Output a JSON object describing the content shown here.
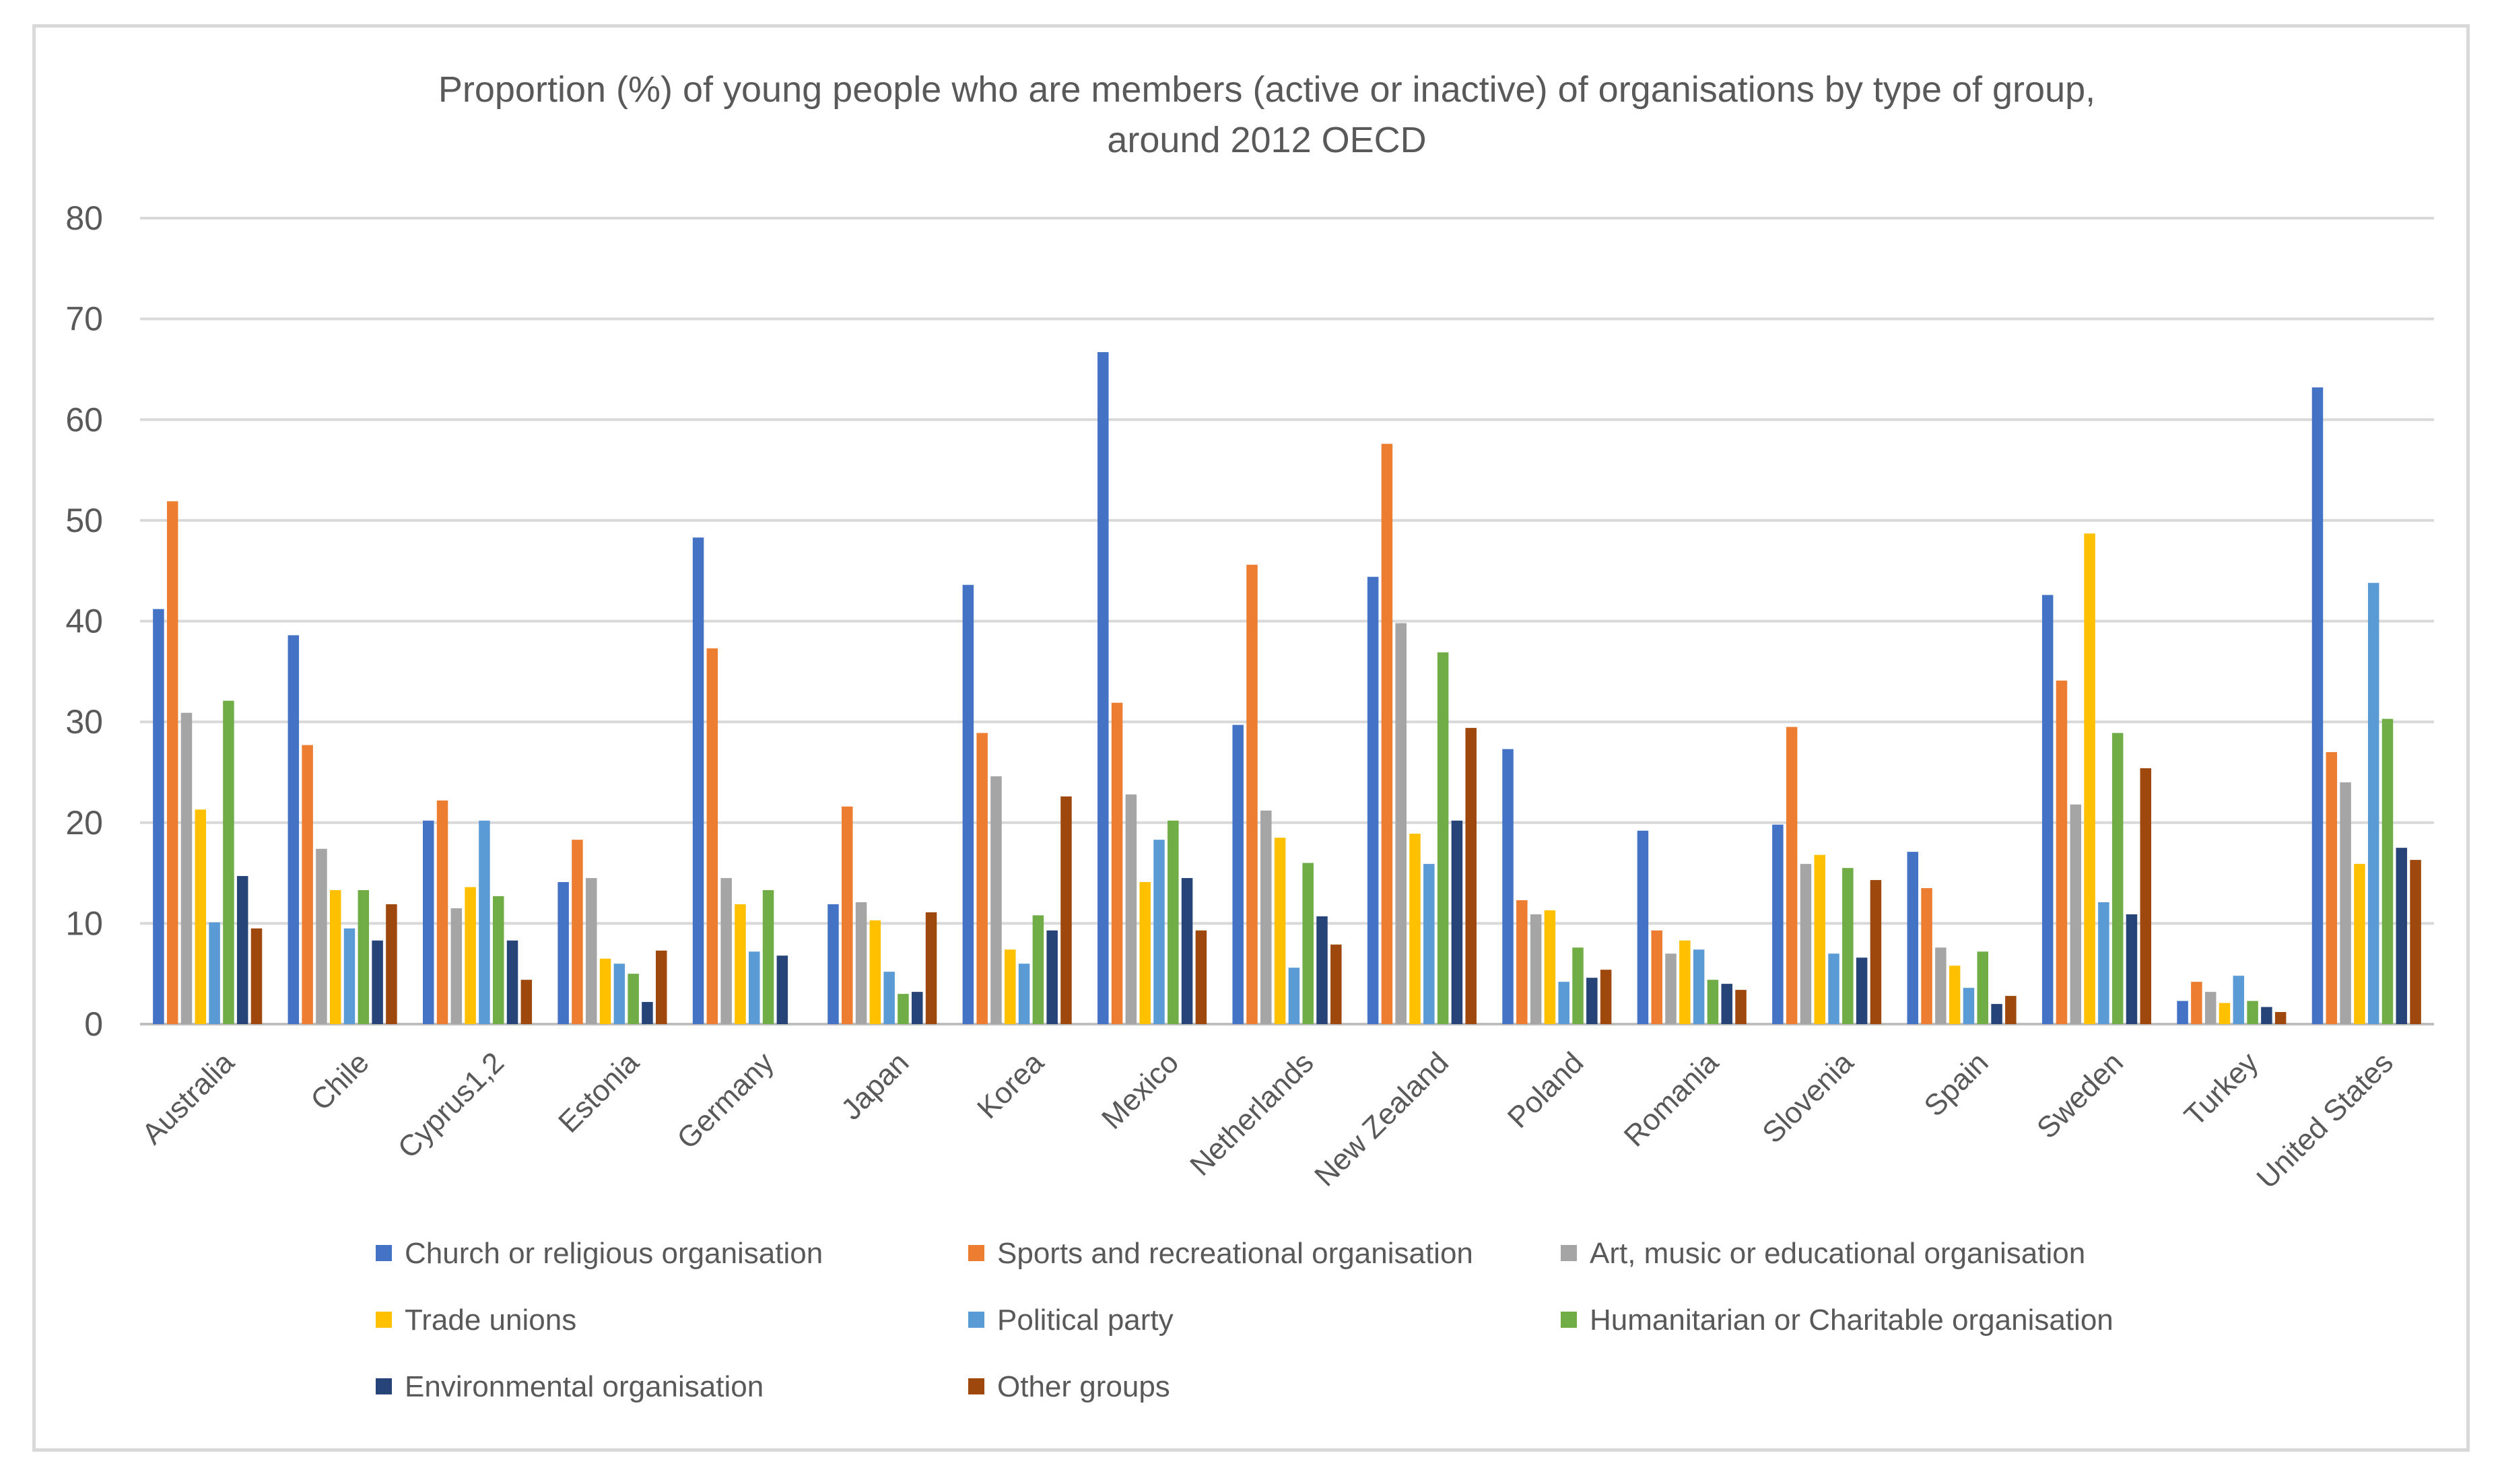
{
  "chart_data": {
    "type": "bar",
    "title_lines": [
      "Proportion (%) of young people who are members (active or inactive) of organisations by type of group,",
      "around 2012 OECD"
    ],
    "xlabel": "",
    "ylabel": "",
    "ylim": [
      0,
      80
    ],
    "yticks": [
      0,
      10,
      20,
      30,
      40,
      50,
      60,
      70,
      80
    ],
    "grid": true,
    "legend_position": "bottom",
    "categories": [
      "Australia",
      "Chile",
      "Cyprus1,2",
      "Estonia",
      "Germany",
      "Japan",
      "Korea",
      "Mexico",
      "Netherlands",
      "New Zealand",
      "Poland",
      "Romania",
      "Slovenia",
      "Spain",
      "Sweden",
      "Turkey",
      "United States"
    ],
    "series": [
      {
        "name": "Church or religious organisation",
        "color": "#4472C4",
        "values": [
          41.2,
          38.6,
          20.2,
          14.1,
          48.3,
          11.9,
          43.6,
          66.7,
          29.7,
          44.4,
          27.3,
          19.2,
          19.8,
          17.1,
          42.6,
          2.3,
          63.2
        ]
      },
      {
        "name": "Sports and recreational organisation",
        "color": "#ED7D31",
        "values": [
          51.9,
          27.7,
          22.2,
          18.3,
          37.3,
          21.6,
          28.9,
          31.9,
          45.6,
          57.6,
          12.3,
          9.3,
          29.5,
          13.5,
          34.1,
          4.2,
          27.0
        ]
      },
      {
        "name": "Art, music or educational organisation",
        "color": "#A5A5A5",
        "values": [
          30.9,
          17.4,
          11.5,
          14.5,
          14.5,
          12.1,
          24.6,
          22.8,
          21.2,
          39.8,
          10.9,
          7.0,
          15.9,
          7.6,
          21.8,
          3.2,
          24.0
        ]
      },
      {
        "name": "Trade unions",
        "color": "#FFC000",
        "values": [
          21.3,
          13.3,
          13.6,
          6.5,
          11.9,
          10.3,
          7.4,
          14.1,
          18.5,
          18.9,
          11.3,
          8.3,
          16.8,
          5.8,
          48.7,
          2.1,
          15.9
        ]
      },
      {
        "name": "Political party",
        "color": "#5B9BD5",
        "values": [
          10.1,
          9.5,
          20.2,
          6.0,
          7.2,
          5.2,
          6.0,
          18.3,
          5.6,
          15.9,
          4.2,
          7.4,
          7.0,
          3.6,
          12.1,
          4.8,
          43.8
        ]
      },
      {
        "name": "Humanitarian or Charitable organisation",
        "color": "#70AD47",
        "values": [
          32.1,
          13.3,
          12.7,
          5.0,
          13.3,
          3.0,
          10.8,
          20.2,
          16.0,
          36.9,
          7.6,
          4.4,
          15.5,
          7.2,
          28.9,
          2.3,
          30.3
        ]
      },
      {
        "name": "Environmental organisation",
        "color": "#264478",
        "values": [
          14.7,
          8.3,
          8.3,
          2.2,
          6.8,
          3.2,
          9.3,
          14.5,
          10.7,
          20.2,
          4.6,
          4.0,
          6.6,
          2.0,
          10.9,
          1.7,
          17.5
        ]
      },
      {
        "name": "Other groups",
        "color": "#9E480E",
        "values": [
          9.5,
          11.9,
          4.4,
          7.3,
          null,
          11.1,
          22.6,
          9.3,
          7.9,
          29.4,
          5.4,
          3.4,
          14.3,
          2.8,
          25.4,
          1.2,
          16.3
        ]
      }
    ]
  }
}
